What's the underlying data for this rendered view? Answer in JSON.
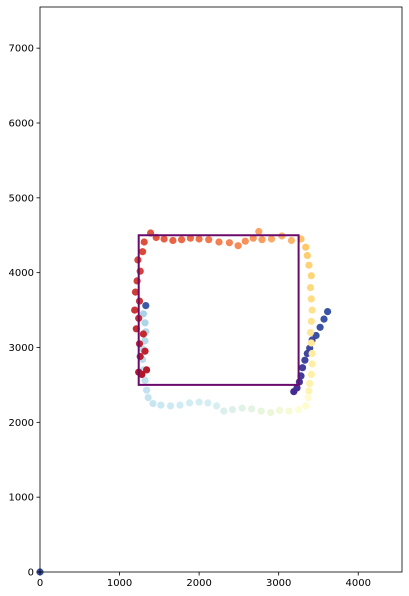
{
  "chart_data": {
    "type": "scatter",
    "title": "",
    "xlabel": "",
    "ylabel": "",
    "xlim": [
      0,
      4550
    ],
    "ylim": [
      0,
      7550
    ],
    "xticks": [
      0,
      1000,
      2000,
      3000,
      4000
    ],
    "yticks": [
      0,
      1000,
      2000,
      3000,
      4000,
      5000,
      6000,
      7000
    ],
    "xtick_labels": [
      "0",
      "1000",
      "2000",
      "3000",
      "4000"
    ],
    "ytick_labels": [
      "0",
      "1000",
      "2000",
      "3000",
      "4000",
      "5000",
      "6000",
      "7000"
    ],
    "grid": false,
    "legend": "none",
    "colormap": "RdYlBu",
    "rectangle": {
      "x": [
        1240,
        3250
      ],
      "y": [
        2500,
        4500
      ],
      "color": "#6a0a6a"
    },
    "points": [
      {
        "x": 0,
        "y": 0,
        "color": "#3a4fa2"
      },
      {
        "x": 3615,
        "y": 3480,
        "color": "#3a53a4"
      },
      {
        "x": 3570,
        "y": 3380,
        "color": "#3a53a4"
      },
      {
        "x": 3520,
        "y": 3270,
        "color": "#3b52a3"
      },
      {
        "x": 3470,
        "y": 3160,
        "color": "#3b52a3"
      },
      {
        "x": 3420,
        "y": 3100,
        "color": "#3e4aa0"
      },
      {
        "x": 3390,
        "y": 2990,
        "color": "#3e4aa0"
      },
      {
        "x": 3360,
        "y": 2920,
        "color": "#3f469e"
      },
      {
        "x": 3330,
        "y": 2830,
        "color": "#40449d"
      },
      {
        "x": 3300,
        "y": 2730,
        "color": "#41409b"
      },
      {
        "x": 3280,
        "y": 2620,
        "color": "#413c99"
      },
      {
        "x": 3260,
        "y": 2540,
        "color": "#423597"
      },
      {
        "x": 3230,
        "y": 2460,
        "color": "#433095"
      },
      {
        "x": 3190,
        "y": 2410,
        "color": "#442a93"
      },
      {
        "x": 3380,
        "y": 2420,
        "color": "#fff3b0"
      },
      {
        "x": 3390,
        "y": 2520,
        "color": "#fff2ad"
      },
      {
        "x": 3410,
        "y": 2640,
        "color": "#fff0a8"
      },
      {
        "x": 3420,
        "y": 2780,
        "color": "#ffeea3"
      },
      {
        "x": 3420,
        "y": 2920,
        "color": "#ffec9e"
      },
      {
        "x": 3410,
        "y": 3060,
        "color": "#ffe999"
      },
      {
        "x": 3400,
        "y": 3200,
        "color": "#fee794"
      },
      {
        "x": 3410,
        "y": 3350,
        "color": "#fee48f"
      },
      {
        "x": 3420,
        "y": 3500,
        "color": "#fee18a"
      },
      {
        "x": 3410,
        "y": 3650,
        "color": "#fedd84"
      },
      {
        "x": 3400,
        "y": 3800,
        "color": "#feda7f"
      },
      {
        "x": 3410,
        "y": 3960,
        "color": "#fed67a"
      },
      {
        "x": 3380,
        "y": 4100,
        "color": "#fed275"
      },
      {
        "x": 3360,
        "y": 4230,
        "color": "#fece70"
      },
      {
        "x": 3340,
        "y": 4340,
        "color": "#fdc96b"
      },
      {
        "x": 3280,
        "y": 4450,
        "color": "#fdc466"
      },
      {
        "x": 3370,
        "y": 2330,
        "color": "#fffad0"
      },
      {
        "x": 3340,
        "y": 2220,
        "color": "#fefccf"
      },
      {
        "x": 3250,
        "y": 2170,
        "color": "#fbfdd2"
      },
      {
        "x": 3130,
        "y": 2150,
        "color": "#f6fbd6"
      },
      {
        "x": 3010,
        "y": 2160,
        "color": "#f1f9d8"
      },
      {
        "x": 2900,
        "y": 2130,
        "color": "#ecf7da"
      },
      {
        "x": 2780,
        "y": 2150,
        "color": "#e8f6dc"
      },
      {
        "x": 2660,
        "y": 2180,
        "color": "#e4f4e2"
      },
      {
        "x": 2540,
        "y": 2190,
        "color": "#e1f3e6"
      },
      {
        "x": 2420,
        "y": 2170,
        "color": "#ddf1ea"
      },
      {
        "x": 2310,
        "y": 2150,
        "color": "#dbf0ed"
      },
      {
        "x": 2220,
        "y": 2220,
        "color": "#d8eff0"
      },
      {
        "x": 2110,
        "y": 2260,
        "color": "#d6eef2"
      },
      {
        "x": 2000,
        "y": 2270,
        "color": "#d4edf3"
      },
      {
        "x": 1880,
        "y": 2260,
        "color": "#d2ecf4"
      },
      {
        "x": 1760,
        "y": 2230,
        "color": "#cfebf4"
      },
      {
        "x": 1640,
        "y": 2220,
        "color": "#cde9f3"
      },
      {
        "x": 1520,
        "y": 2230,
        "color": "#cae8f2"
      },
      {
        "x": 1420,
        "y": 2250,
        "color": "#c8e6f1"
      },
      {
        "x": 1360,
        "y": 2330,
        "color": "#c5e4f0"
      },
      {
        "x": 1340,
        "y": 2430,
        "color": "#c2e2ef"
      },
      {
        "x": 1320,
        "y": 2560,
        "color": "#bfe0ee"
      },
      {
        "x": 1300,
        "y": 2700,
        "color": "#bcdeed"
      },
      {
        "x": 1290,
        "y": 2840,
        "color": "#b9dcec"
      },
      {
        "x": 1300,
        "y": 2970,
        "color": "#b6dbeb"
      },
      {
        "x": 1320,
        "y": 3090,
        "color": "#b3d9ea"
      },
      {
        "x": 1330,
        "y": 3210,
        "color": "#b0d7e8"
      },
      {
        "x": 1320,
        "y": 3330,
        "color": "#add5e7"
      },
      {
        "x": 1300,
        "y": 3450,
        "color": "#aad3e6"
      },
      {
        "x": 1330,
        "y": 3560,
        "color": "#3c59a6"
      },
      {
        "x": 1240,
        "y": 2670,
        "color": "#b5172b"
      },
      {
        "x": 1280,
        "y": 2640,
        "color": "#b31529"
      },
      {
        "x": 1340,
        "y": 2700,
        "color": "#b71c2c"
      },
      {
        "x": 1260,
        "y": 2880,
        "color": "#b9202d"
      },
      {
        "x": 1320,
        "y": 2950,
        "color": "#bc232e"
      },
      {
        "x": 1250,
        "y": 3050,
        "color": "#bf262f"
      },
      {
        "x": 1300,
        "y": 3180,
        "color": "#c22a30"
      },
      {
        "x": 1210,
        "y": 3250,
        "color": "#c42d31"
      },
      {
        "x": 1240,
        "y": 3390,
        "color": "#c73032"
      },
      {
        "x": 1190,
        "y": 3500,
        "color": "#ca3433"
      },
      {
        "x": 1250,
        "y": 3620,
        "color": "#cc3734"
      },
      {
        "x": 1200,
        "y": 3740,
        "color": "#cf3b35"
      },
      {
        "x": 1220,
        "y": 3890,
        "color": "#d23e36"
      },
      {
        "x": 1260,
        "y": 4020,
        "color": "#d54237"
      },
      {
        "x": 1230,
        "y": 4170,
        "color": "#d74638"
      },
      {
        "x": 1290,
        "y": 4280,
        "color": "#da4a39"
      },
      {
        "x": 1310,
        "y": 4410,
        "color": "#dd4e3b"
      },
      {
        "x": 1390,
        "y": 4530,
        "color": "#e0533d"
      },
      {
        "x": 1460,
        "y": 4470,
        "color": "#e3583f"
      },
      {
        "x": 1560,
        "y": 4450,
        "color": "#e65d41"
      },
      {
        "x": 1670,
        "y": 4430,
        "color": "#e96243"
      },
      {
        "x": 1780,
        "y": 4440,
        "color": "#ec6846"
      },
      {
        "x": 1890,
        "y": 4460,
        "color": "#ee6d48"
      },
      {
        "x": 2000,
        "y": 4450,
        "color": "#f0734b"
      },
      {
        "x": 2120,
        "y": 4440,
        "color": "#f2794e"
      },
      {
        "x": 2250,
        "y": 4410,
        "color": "#f47f51"
      },
      {
        "x": 2380,
        "y": 4400,
        "color": "#f58554"
      },
      {
        "x": 2490,
        "y": 4360,
        "color": "#f68b57"
      },
      {
        "x": 2580,
        "y": 4420,
        "color": "#f7915a"
      },
      {
        "x": 2680,
        "y": 4460,
        "color": "#f8975d"
      },
      {
        "x": 2790,
        "y": 4440,
        "color": "#f99d60"
      },
      {
        "x": 2750,
        "y": 4550,
        "color": "#faa363"
      },
      {
        "x": 2910,
        "y": 4450,
        "color": "#fba966"
      },
      {
        "x": 3040,
        "y": 4490,
        "color": "#fbaf69"
      },
      {
        "x": 3160,
        "y": 4430,
        "color": "#fcb56c"
      }
    ]
  }
}
